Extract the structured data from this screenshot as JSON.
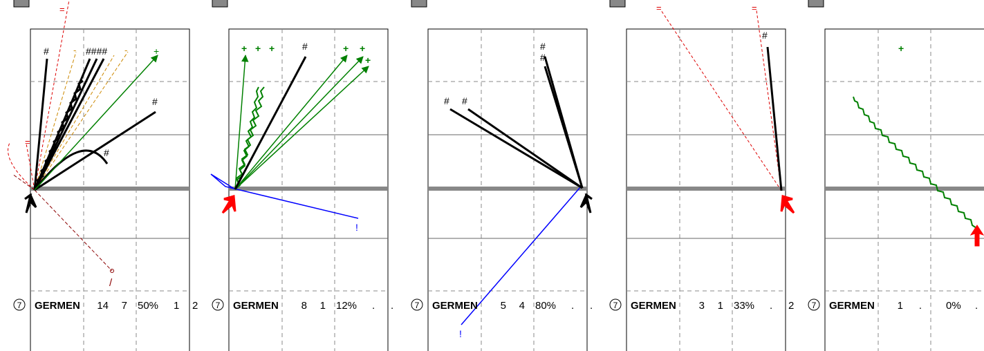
{
  "panels": [
    {
      "player": "GERMEN",
      "number": "7",
      "stats": [
        "14",
        "7",
        "50%",
        "1",
        "2"
      ],
      "shooter_color": "#000000",
      "marks": [
        "#",
        "####",
        "+",
        "#",
        "#",
        "=",
        "=",
        "-",
        "-",
        "/"
      ]
    },
    {
      "player": "GERMEN",
      "number": "7",
      "stats": [
        "8",
        "1",
        "12%",
        ".",
        "."
      ],
      "shooter_color": "#ff0000",
      "marks": [
        "+",
        "+",
        "+",
        "#",
        "+",
        "+",
        "+",
        "!"
      ]
    },
    {
      "player": "GERMEN",
      "number": "7",
      "stats": [
        "5",
        "4",
        "80%",
        ".",
        "."
      ],
      "shooter_color": "#000000",
      "marks": [
        "#",
        "#",
        "#",
        "#",
        "!"
      ]
    },
    {
      "player": "GERMEN",
      "number": "7",
      "stats": [
        "3",
        "1",
        "33%",
        ".",
        "2"
      ],
      "shooter_color": "#ff0000",
      "marks": [
        "=",
        "=",
        "#"
      ]
    },
    {
      "player": "GERMEN",
      "number": "7",
      "stats": [
        "1",
        ".",
        "0%",
        ".",
        "."
      ],
      "shooter_color": "#ff0000",
      "marks": [
        "+"
      ]
    }
  ],
  "colors": {
    "goal": "#000000",
    "save": "#008000",
    "block": "#0000ff",
    "miss": "#dd0000",
    "wide": "#cc8800",
    "post": "#8b0000",
    "grid": "#888888",
    "midline": "#888888"
  }
}
